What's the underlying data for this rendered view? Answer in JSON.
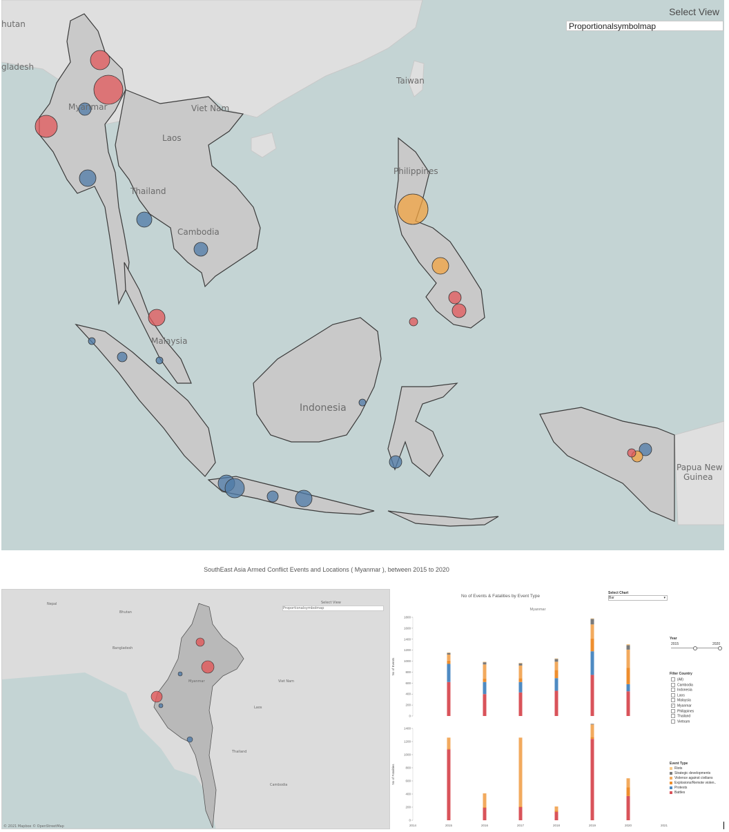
{
  "big_map": {
    "select_view_title": "Select View",
    "select_view_value": "Proportionalsymbolmap",
    "labels": [
      "hutan",
      "gladesh",
      "Taiwan",
      "Myanmar",
      "Viet Nam",
      "Laos",
      "Thailand",
      "Cambodia",
      "Philippines",
      "Malaysia",
      "Indonesia",
      "Papua New",
      "Guinea"
    ],
    "colors": {
      "sea": "#c4d4d4",
      "land": "#d2d2d2",
      "battles": "#e15759",
      "protests": "#4e79a7",
      "violence": "#f1a340"
    }
  },
  "dashboard": {
    "title": "SouthEast Asia Armed Conflict Events and Locations ( Myanmar ), between 2015 to 2020"
  },
  "small_map": {
    "select_view_title": "Select View",
    "select_view_value": "Proportionalsymbolmap",
    "labels": [
      "Nepal",
      "Bhutan",
      "Bangladesh",
      "Myanmar",
      "Viet Nam",
      "Laos",
      "Thailand",
      "Cambodia"
    ],
    "attribution": "© 2021 Mapbox © OpenStreetMap"
  },
  "side_panel": {
    "select_chart_title": "Select Chart",
    "select_chart_value": "Bar",
    "year_title": "Year",
    "year_min": "2015",
    "year_max": "2020",
    "filter_country_title": "Filter Country",
    "countries": [
      {
        "label": "(All)",
        "checked": false
      },
      {
        "label": "Cambodia",
        "checked": false
      },
      {
        "label": "Indonesia",
        "checked": false
      },
      {
        "label": "Laos",
        "checked": false
      },
      {
        "label": "Malaysia",
        "checked": false
      },
      {
        "label": "Myanmar",
        "checked": true
      },
      {
        "label": "Philippines",
        "checked": false
      },
      {
        "label": "Thailand",
        "checked": false
      },
      {
        "label": "Vietnam",
        "checked": false
      }
    ],
    "event_type_title": "Event Type",
    "event_types": [
      {
        "label": "Riots",
        "color": "#f6c888"
      },
      {
        "label": "Strategic developments",
        "color": "#7a7a7a"
      },
      {
        "label": "Violence against civilians",
        "color": "#f2aa5e"
      },
      {
        "label": "Explosions/Remote violen..",
        "color": "#ee8e2e"
      },
      {
        "label": "Protests",
        "color": "#4e8ac2"
      },
      {
        "label": "Battles",
        "color": "#d9535a"
      }
    ]
  },
  "chart_data": {
    "type": "bar",
    "title": "No of Events & Fatalities by Event Type",
    "subtitle": "Myanmar",
    "categories": [
      "2014",
      "2015",
      "2016",
      "2017",
      "2018",
      "2019",
      "2020",
      "2021"
    ],
    "bar_years": [
      "2015",
      "2016",
      "2017",
      "2018",
      "2019",
      "2020"
    ],
    "series_order": [
      "Battles",
      "Protests",
      "Explosions/Remote violen..",
      "Violence against civilians",
      "Strategic developments",
      "Riots"
    ],
    "colors": {
      "Battles": "#d9535a",
      "Protests": "#4e8ac2",
      "Explosions/Remote violen..": "#ee8e2e",
      "Violence against civilians": "#f2aa5e",
      "Strategic developments": "#7a7a7a",
      "Riots": "#f6c888"
    },
    "panels": [
      {
        "ylabel": "No of Events",
        "ylim": [
          0,
          1800
        ],
        "yticks": [
          "0",
          "200",
          "400",
          "600",
          "800",
          "1000",
          "1200",
          "1400",
          "1600",
          "1800"
        ],
        "stacks": [
          {
            "year": "2015",
            "values": {
              "Battles": 620,
              "Protests": 330,
              "Explosions/Remote violen..": 60,
              "Violence against civilians": 110,
              "Strategic developments": 30,
              "Riots": 10
            }
          },
          {
            "year": "2016",
            "values": {
              "Battles": 400,
              "Protests": 220,
              "Explosions/Remote violen..": 60,
              "Violence against civilians": 260,
              "Strategic developments": 40,
              "Riots": 10
            }
          },
          {
            "year": "2017",
            "values": {
              "Battles": 430,
              "Protests": 190,
              "Explosions/Remote violen..": 70,
              "Violence against civilians": 230,
              "Strategic developments": 40,
              "Riots": 10
            }
          },
          {
            "year": "2018",
            "values": {
              "Battles": 460,
              "Protests": 230,
              "Explosions/Remote violen..": 150,
              "Violence against civilians": 150,
              "Strategic developments": 50,
              "Riots": 10
            }
          },
          {
            "year": "2019",
            "values": {
              "Battles": 750,
              "Protests": 430,
              "Explosions/Remote violen..": 230,
              "Violence against civilians": 260,
              "Strategic developments": 100,
              "Riots": 10
            }
          },
          {
            "year": "2020",
            "values": {
              "Battles": 450,
              "Protests": 130,
              "Explosions/Remote violen..": 300,
              "Violence against civilians": 330,
              "Strategic developments": 80,
              "Riots": 20
            }
          }
        ]
      },
      {
        "ylabel": "No of Fatalities",
        "ylim": [
          0,
          1400
        ],
        "yticks": [
          "0",
          "200",
          "400",
          "600",
          "800",
          "1000",
          "1200",
          "1400"
        ],
        "stacks": [
          {
            "year": "2015",
            "values": {
              "Battles": 1080,
              "Protests": 0,
              "Explosions/Remote violen..": 10,
              "Violence against civilians": 170,
              "Strategic developments": 0,
              "Riots": 0
            }
          },
          {
            "year": "2016",
            "values": {
              "Battles": 190,
              "Protests": 0,
              "Explosions/Remote violen..": 10,
              "Violence against civilians": 210,
              "Strategic developments": 0,
              "Riots": 0
            }
          },
          {
            "year": "2017",
            "values": {
              "Battles": 200,
              "Protests": 0,
              "Explosions/Remote violen..": 10,
              "Violence against civilians": 1050,
              "Strategic developments": 0,
              "Riots": 0
            }
          },
          {
            "year": "2018",
            "values": {
              "Battles": 130,
              "Protests": 0,
              "Explosions/Remote violen..": 20,
              "Violence against civilians": 60,
              "Strategic developments": 0,
              "Riots": 0
            }
          },
          {
            "year": "2019",
            "values": {
              "Battles": 1240,
              "Protests": 0,
              "Explosions/Remote violen..": 30,
              "Violence against civilians": 190,
              "Strategic developments": 10,
              "Riots": 0
            }
          },
          {
            "year": "2020",
            "values": {
              "Battles": 370,
              "Protests": 0,
              "Explosions/Remote violen..": 130,
              "Violence against civilians": 140,
              "Strategic developments": 0,
              "Riots": 0
            }
          }
        ]
      }
    ]
  }
}
